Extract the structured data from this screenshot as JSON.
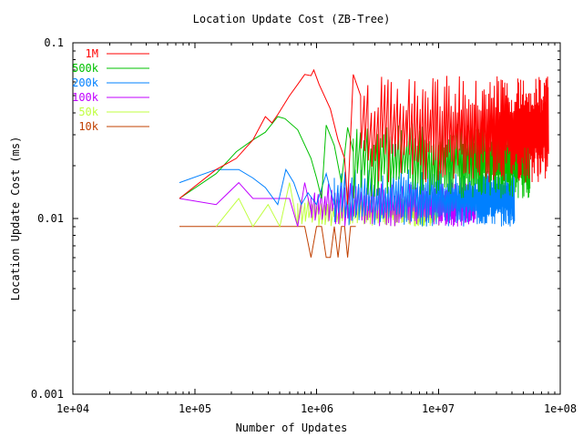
{
  "chart_data": {
    "type": "line",
    "title": "Location Update Cost (ZB-Tree)",
    "xlabel": "Number of Updates",
    "ylabel": "Location Update Cost (ms)",
    "xscale": "log",
    "yscale": "log",
    "xlim": [
      10000,
      100000000
    ],
    "ylim": [
      0.001,
      0.1
    ],
    "x_ticks": [
      "1e+04",
      "1e+05",
      "1e+06",
      "1e+07",
      "1e+08"
    ],
    "y_ticks": [
      "0.1",
      "0.01",
      "0.001"
    ],
    "grid": false,
    "legend_position": "top-left inside",
    "series": [
      {
        "name": "1M",
        "color": "#ff0000",
        "points": [
          [
            75000,
            0.013
          ],
          [
            150000,
            0.019
          ],
          [
            220000,
            0.022
          ],
          [
            300000,
            0.028
          ],
          [
            380000,
            0.038
          ],
          [
            430000,
            0.035
          ],
          [
            480000,
            0.039
          ],
          [
            600000,
            0.05
          ],
          [
            700000,
            0.058
          ],
          [
            800000,
            0.066
          ],
          [
            900000,
            0.065
          ],
          [
            950000,
            0.07
          ],
          [
            1050000,
            0.058
          ],
          [
            1300000,
            0.042
          ],
          [
            1500000,
            0.028
          ],
          [
            1700000,
            0.022
          ],
          [
            1800000,
            0.012
          ],
          [
            2000000,
            0.066
          ],
          [
            2300000,
            0.05
          ]
        ],
        "band": {
          "from": 2300000,
          "to": 80000000,
          "low": 0.016,
          "high": 0.065
        }
      },
      {
        "name": "500k",
        "color": "#00c000",
        "points": [
          [
            75000,
            0.013
          ],
          [
            150000,
            0.018
          ],
          [
            220000,
            0.024
          ],
          [
            300000,
            0.028
          ],
          [
            380000,
            0.031
          ],
          [
            480000,
            0.038
          ],
          [
            550000,
            0.037
          ],
          [
            700000,
            0.032
          ],
          [
            900000,
            0.022
          ],
          [
            1000000,
            0.017
          ],
          [
            1100000,
            0.013
          ],
          [
            1200000,
            0.034
          ],
          [
            1400000,
            0.026
          ],
          [
            1600000,
            0.016
          ],
          [
            1800000,
            0.033
          ],
          [
            2000000,
            0.024
          ]
        ],
        "band": {
          "from": 2000000,
          "to": 56000000,
          "low": 0.013,
          "high": 0.035
        }
      },
      {
        "name": "200k",
        "color": "#0080ff",
        "points": [
          [
            75000,
            0.016
          ],
          [
            150000,
            0.019
          ],
          [
            230000,
            0.019
          ],
          [
            300000,
            0.017
          ],
          [
            380000,
            0.015
          ],
          [
            480000,
            0.012
          ],
          [
            560000,
            0.019
          ],
          [
            650000,
            0.016
          ],
          [
            750000,
            0.012
          ],
          [
            850000,
            0.014
          ],
          [
            1000000,
            0.012
          ],
          [
            1200000,
            0.018
          ],
          [
            1400000,
            0.012
          ]
        ],
        "band": {
          "from": 1400000,
          "to": 42000000,
          "low": 0.009,
          "high": 0.019
        }
      },
      {
        "name": "100k",
        "color": "#c000ff",
        "points": [
          [
            75000,
            0.013
          ],
          [
            150000,
            0.012
          ],
          [
            230000,
            0.016
          ],
          [
            300000,
            0.013
          ],
          [
            420000,
            0.013
          ],
          [
            600000,
            0.013
          ],
          [
            700000,
            0.009
          ],
          [
            800000,
            0.016
          ],
          [
            900000,
            0.011
          ]
        ],
        "band": {
          "from": 900000,
          "to": 20000000,
          "low": 0.009,
          "high": 0.016
        }
      },
      {
        "name": "50k",
        "color": "#c0ff40",
        "points": [
          [
            150000,
            0.009
          ],
          [
            230000,
            0.013
          ],
          [
            300000,
            0.009
          ],
          [
            400000,
            0.012
          ],
          [
            500000,
            0.009
          ],
          [
            600000,
            0.016
          ],
          [
            700000,
            0.009
          ]
        ],
        "band": {
          "from": 700000,
          "to": 10000000,
          "low": 0.009,
          "high": 0.013
        }
      },
      {
        "name": "10k",
        "color": "#c04000",
        "points": [
          [
            75000,
            0.009
          ],
          [
            200000,
            0.009
          ],
          [
            500000,
            0.009
          ],
          [
            800000,
            0.009
          ],
          [
            900000,
            0.006
          ],
          [
            1000000,
            0.009
          ],
          [
            1100000,
            0.009
          ],
          [
            1200000,
            0.006
          ],
          [
            1300000,
            0.006
          ],
          [
            1400000,
            0.009
          ],
          [
            1500000,
            0.006
          ],
          [
            1600000,
            0.009
          ],
          [
            1700000,
            0.009
          ],
          [
            1800000,
            0.006
          ],
          [
            1900000,
            0.009
          ],
          [
            2100000,
            0.009
          ]
        ],
        "band": null
      }
    ]
  },
  "labels": {
    "title": "Location Update Cost (ZB-Tree)",
    "xlabel": "Number of Updates",
    "ylabel": "Location Update Cost (ms)",
    "yticks": {
      "top": "0.1",
      "mid": "0.01",
      "bottom": "0.001"
    },
    "xticks": {
      "t0": "1e+04",
      "t1": "1e+05",
      "t2": "1e+06",
      "t3": "1e+07",
      "t4": "1e+08"
    },
    "legend": {
      "l0": "1M",
      "l1": "500k",
      "l2": "200k",
      "l3": "100k",
      "l4": "50k",
      "l5": "10k"
    }
  }
}
